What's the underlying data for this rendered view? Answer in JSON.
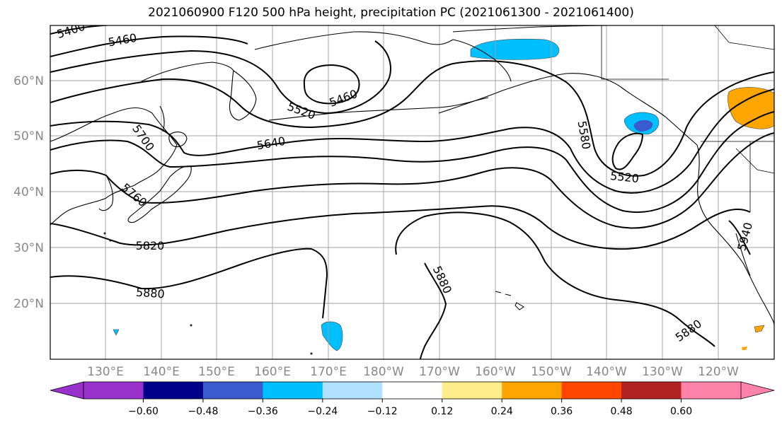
{
  "title": "2021060900 F120 500 hPa height, precipitation PC (2021061300 - 2021061400)",
  "lat_labels": [
    "60°N",
    "50°N",
    "40°N",
    "30°N",
    "20°N"
  ],
  "lon_labels": [
    "130°E",
    "140°E",
    "150°E",
    "160°E",
    "170°E",
    "180°W",
    "170°W",
    "160°W",
    "150°W",
    "140°W",
    "130°W",
    "120°W"
  ],
  "contour_labels": [
    "5400",
    "5460",
    "5460",
    "5520",
    "5520",
    "5580",
    "5640",
    "5700",
    "5760",
    "5820",
    "5880",
    "5880",
    "5880",
    "5940"
  ],
  "colorbar": {
    "ticks": [
      "−0.60",
      "−0.48",
      "−0.36",
      "−0.24",
      "−0.12",
      "0.12",
      "0.24",
      "0.36",
      "0.48",
      "0.60"
    ],
    "colors": [
      "#9932cc",
      "#00008b",
      "#3a5bcd",
      "#00bfff",
      "#b0e2ff",
      "#ffffff",
      "#ffec8b",
      "#ffa500",
      "#ff4500",
      "#b22222",
      "#ff82ab"
    ]
  }
}
